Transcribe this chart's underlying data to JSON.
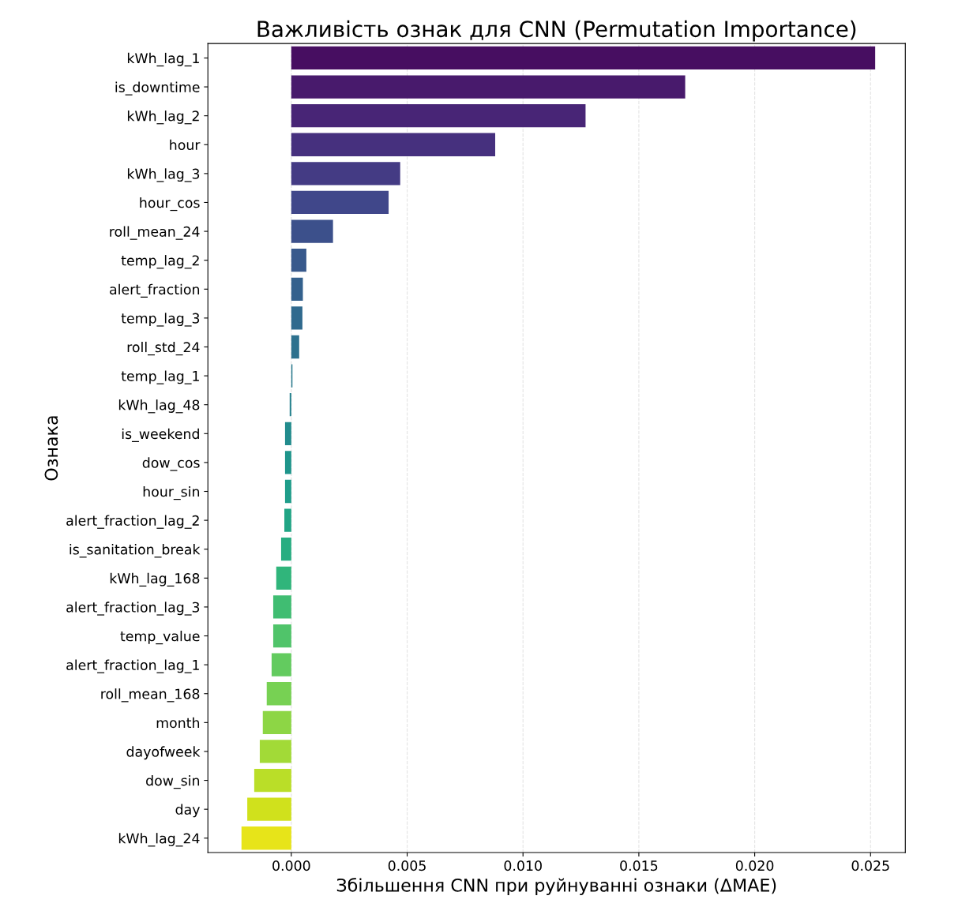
{
  "chart_data": {
    "type": "bar",
    "orientation": "horizontal",
    "title": "Важливість ознак для CNN (Permutation Importance)",
    "xlabel": "Збільшення CNN при руйнуванні ознаки (ΔMAE)",
    "ylabel": "Ознака",
    "categories": [
      "kWh_lag_1",
      "is_downtime",
      "kWh_lag_2",
      "hour",
      "kWh_lag_3",
      "hour_cos",
      "roll_mean_24",
      "temp_lag_2",
      "alert_fraction",
      "temp_lag_3",
      "roll_std_24",
      "temp_lag_1",
      "kWh_lag_48",
      "is_weekend",
      "dow_cos",
      "hour_sin",
      "alert_fraction_lag_2",
      "is_sanitation_break",
      "kWh_lag_168",
      "alert_fraction_lag_3",
      "temp_value",
      "alert_fraction_lag_1",
      "roll_mean_168",
      "month",
      "dayofweek",
      "dow_sin",
      "day",
      "kWh_lag_24"
    ],
    "values": [
      0.0252,
      0.017,
      0.0127,
      0.0088,
      0.0047,
      0.0042,
      0.0018,
      0.00065,
      0.0005,
      0.00048,
      0.00034,
      5e-05,
      -7e-05,
      -0.00027,
      -0.00027,
      -0.00027,
      -0.0003,
      -0.00044,
      -0.00065,
      -0.00078,
      -0.00078,
      -0.00085,
      -0.00106,
      -0.00123,
      -0.00136,
      -0.0016,
      -0.0019,
      -0.00215
    ],
    "colors": [
      "#470e61",
      "#481a6c",
      "#482576",
      "#46307e",
      "#443b84",
      "#40478a",
      "#3c508b",
      "#38598c",
      "#34618d",
      "#306a8e",
      "#2d718e",
      "#297a8e",
      "#26828e",
      "#228c8d",
      "#1f958b",
      "#1f9d8a",
      "#21a585",
      "#27ad81",
      "#30b57b",
      "#40bd72",
      "#50c46a",
      "#63cb5f",
      "#77d153",
      "#8dd645",
      "#a2da37",
      "#bade28",
      "#d0e11c",
      "#e7e419"
    ],
    "xlim": [
      -0.0036,
      0.0265
    ],
    "xticks": [
      {
        "value": 0,
        "label": "0.000"
      },
      {
        "value": 0.005,
        "label": "0.005"
      },
      {
        "value": 0.01,
        "label": "0.010"
      },
      {
        "value": 0.015,
        "label": "0.015"
      },
      {
        "value": 0.02,
        "label": "0.020"
      },
      {
        "value": 0.025,
        "label": "0.025"
      }
    ],
    "grid": "x",
    "line_style": "dashed"
  }
}
